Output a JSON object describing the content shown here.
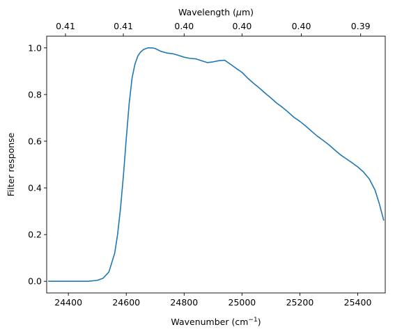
{
  "chart_data": {
    "type": "line",
    "title": "",
    "xlabel": "Wavenumber (cm",
    "xlabel_sup": "−1",
    "xlabel_end": ")",
    "ylabel": "Filter response",
    "top_xlabel": "Wavelength (",
    "top_xlabel_mu": "μ",
    "top_xlabel_end": "m)",
    "xlim": [
      24325,
      25495
    ],
    "ylim": [
      -0.05,
      1.05
    ],
    "grid": false,
    "x_ticks": [
      24400,
      24600,
      24800,
      25000,
      25200,
      25400
    ],
    "x_tick_labels": [
      "24400",
      "24600",
      "24800",
      "25000",
      "25200",
      "25400"
    ],
    "y_ticks": [
      0.0,
      0.2,
      0.4,
      0.6,
      0.8,
      1.0
    ],
    "y_tick_labels": [
      "0.0",
      "0.2",
      "0.4",
      "0.6",
      "0.8",
      "1.0"
    ],
    "top_ticks": [
      24390,
      24590,
      24800,
      25000,
      25205,
      25410
    ],
    "top_tick_labels": [
      "0.41",
      "0.41",
      "0.40",
      "0.40",
      "0.40",
      "0.39"
    ],
    "series": [
      {
        "color": "#1f77b4",
        "x": [
          24330,
          24400,
          24470,
          24500,
          24520,
          24540,
          24560,
          24570,
          24580,
          24590,
          24600,
          24610,
          24620,
          24630,
          24640,
          24650,
          24660,
          24675,
          24690,
          24700,
          24720,
          24740,
          24760,
          24780,
          24800,
          24820,
          24840,
          24860,
          24880,
          24900,
          24920,
          24940,
          24960,
          24980,
          25000,
          25020,
          25040,
          25060,
          25080,
          25100,
          25120,
          25140,
          25160,
          25180,
          25200,
          25220,
          25240,
          25260,
          25280,
          25300,
          25320,
          25340,
          25360,
          25380,
          25400,
          25420,
          25440,
          25460,
          25475,
          25490
        ],
        "y": [
          0.0,
          0.0,
          0.0,
          0.004,
          0.013,
          0.04,
          0.12,
          0.2,
          0.31,
          0.45,
          0.61,
          0.76,
          0.87,
          0.93,
          0.965,
          0.983,
          0.993,
          1.0,
          1.0,
          0.997,
          0.985,
          0.978,
          0.975,
          0.968,
          0.96,
          0.955,
          0.953,
          0.945,
          0.937,
          0.94,
          0.945,
          0.947,
          0.93,
          0.912,
          0.895,
          0.87,
          0.848,
          0.828,
          0.806,
          0.785,
          0.763,
          0.745,
          0.724,
          0.702,
          0.685,
          0.665,
          0.643,
          0.622,
          0.604,
          0.585,
          0.563,
          0.542,
          0.525,
          0.508,
          0.49,
          0.468,
          0.438,
          0.39,
          0.33,
          0.26
        ]
      }
    ]
  }
}
